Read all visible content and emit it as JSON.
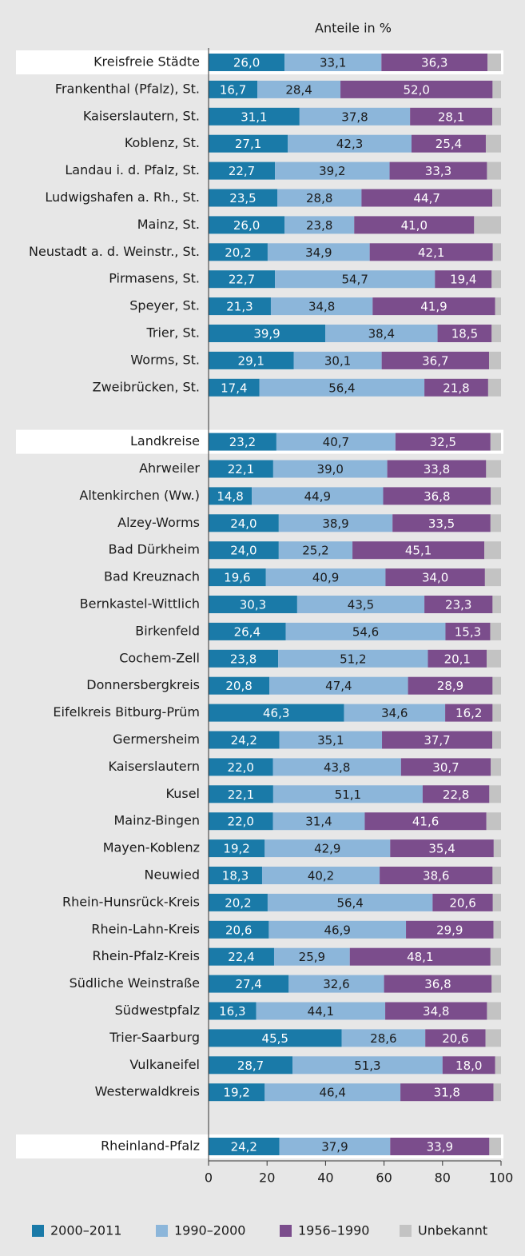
{
  "chart_data": {
    "type": "stacked-bar",
    "orientation": "horizontal",
    "title": "Anteile in %",
    "categories": [
      "Kreisfreie Städte",
      "Frankenthal (Pfalz), St.",
      "Kaiserslautern, St.",
      "Koblenz, St.",
      "Landau i. d. Pfalz, St.",
      "Ludwigshafen a. Rh., St.",
      "Mainz, St.",
      "Neustadt a. d. Weinstr., St.",
      "Pirmasens, St.",
      "Speyer, St.",
      "Trier, St.",
      "Worms, St.",
      "Zweibrücken, St.",
      null,
      "Landkreise",
      "Ahrweiler",
      "Altenkirchen (Ww.)",
      "Alzey-Worms",
      "Bad Dürkheim",
      "Bad Kreuznach",
      "Bernkastel-Wittlich",
      "Birkenfeld",
      "Cochem-Zell",
      "Donnersbergkreis",
      "Eifelkreis Bitburg-Prüm",
      "Germersheim",
      "Kaiserslautern",
      "Kusel",
      "Mainz-Bingen",
      "Mayen-Koblenz",
      "Neuwied",
      "Rhein-Hunsrück-Kreis",
      "Rhein-Lahn-Kreis",
      "Rhein-Pfalz-Kreis",
      "Südliche Weinstraße",
      "Südwestpfalz",
      "Trier-Saarburg",
      "Vulkaneifel",
      "Westerwaldkreis",
      null,
      "Rheinland-Pfalz"
    ],
    "series": [
      {
        "name": "2000–2011",
        "color": "#1a7aa8",
        "values": [
          26.0,
          16.7,
          31.1,
          27.1,
          22.7,
          23.5,
          26.0,
          20.2,
          22.7,
          21.3,
          39.9,
          29.1,
          17.4,
          null,
          23.2,
          22.1,
          14.8,
          24.0,
          24.0,
          19.6,
          30.3,
          26.4,
          23.8,
          20.8,
          46.3,
          24.2,
          22.0,
          22.1,
          22.0,
          19.2,
          18.3,
          20.2,
          20.6,
          22.4,
          27.4,
          16.3,
          45.5,
          28.7,
          19.2,
          null,
          24.2
        ],
        "value_labels": [
          "26,0",
          "16,7",
          "31,1",
          "27,1",
          "22,7",
          "23,5",
          "26,0",
          "20,2",
          "22,7",
          "21,3",
          "39,9",
          "29,1",
          "17,4",
          null,
          "23,2",
          "22,1",
          "14,8",
          "24,0",
          "24,0",
          "19,6",
          "30,3",
          "26,4",
          "23,8",
          "20,8",
          "46,3",
          "24,2",
          "22,0",
          "22,1",
          "22,0",
          "19,2",
          "18,3",
          "20,2",
          "20,6",
          "22,4",
          "27,4",
          "16,3",
          "45,5",
          "28,7",
          "19,2",
          null,
          "24,2"
        ]
      },
      {
        "name": "1990–2000",
        "color": "#8cb6da",
        "values": [
          33.1,
          28.4,
          37.8,
          42.3,
          39.2,
          28.8,
          23.8,
          34.9,
          54.7,
          34.8,
          38.4,
          30.1,
          56.4,
          null,
          40.7,
          39.0,
          44.9,
          38.9,
          25.2,
          40.9,
          43.5,
          54.6,
          51.2,
          47.4,
          34.6,
          35.1,
          43.8,
          51.1,
          31.4,
          42.9,
          40.2,
          56.4,
          46.9,
          25.9,
          32.6,
          44.1,
          28.6,
          51.3,
          46.4,
          null,
          37.9
        ],
        "value_labels": [
          "33,1",
          "28,4",
          "37,8",
          "42,3",
          "39,2",
          "28,8",
          "23,8",
          "34,9",
          "54,7",
          "34,8",
          "38,4",
          "30,1",
          "56,4",
          null,
          "40,7",
          "39,0",
          "44,9",
          "38,9",
          "25,2",
          "40,9",
          "43,5",
          "54,6",
          "51,2",
          "47,4",
          "34,6",
          "35,1",
          "43,8",
          "51,1",
          "31,4",
          "42,9",
          "40,2",
          "56,4",
          "46,9",
          "25,9",
          "32,6",
          "44,1",
          "28,6",
          "51,3",
          "46,4",
          null,
          "37,9"
        ]
      },
      {
        "name": "1956–1990",
        "color": "#7b4d8c",
        "values": [
          36.3,
          52.0,
          28.1,
          25.4,
          33.3,
          44.7,
          41.0,
          42.1,
          19.4,
          41.9,
          18.5,
          36.7,
          21.8,
          null,
          32.5,
          33.8,
          36.8,
          33.5,
          45.1,
          34.0,
          23.3,
          15.3,
          20.1,
          28.9,
          16.2,
          37.7,
          30.7,
          22.8,
          41.6,
          35.4,
          38.6,
          20.6,
          29.9,
          48.1,
          36.8,
          34.8,
          20.6,
          18.0,
          31.8,
          null,
          33.9
        ],
        "value_labels": [
          "36,3",
          "52,0",
          "28,1",
          "25,4",
          "33,3",
          "44,7",
          "41,0",
          "42,1",
          "19,4",
          "41,9",
          "18,5",
          "36,7",
          "21,8",
          null,
          "32,5",
          "33,8",
          "36,8",
          "33,5",
          "45,1",
          "34,0",
          "23,3",
          "15,3",
          "20,1",
          "28,9",
          "16,2",
          "37,7",
          "30,7",
          "22,8",
          "41,6",
          "35,4",
          "38,6",
          "20,6",
          "29,9",
          "48,1",
          "36,8",
          "34,8",
          "20,6",
          "18,0",
          "31,8",
          null,
          "33,9"
        ]
      },
      {
        "name": "Unbekannt",
        "color": "#c3c3c3",
        "values": [
          4.6,
          2.9,
          3.0,
          5.2,
          4.8,
          3.0,
          9.2,
          2.8,
          3.2,
          2.0,
          3.2,
          4.1,
          4.4,
          null,
          3.6,
          5.1,
          3.5,
          3.6,
          5.7,
          5.5,
          2.9,
          3.7,
          4.9,
          2.9,
          2.9,
          3.0,
          3.5,
          4.0,
          5.0,
          2.5,
          2.9,
          2.8,
          2.6,
          3.6,
          3.2,
          4.8,
          5.3,
          2.0,
          2.6,
          null,
          4.0
        ]
      }
    ],
    "xlim": [
      0,
      100
    ],
    "xticks": [
      0,
      20,
      40,
      60,
      80,
      100
    ]
  }
}
